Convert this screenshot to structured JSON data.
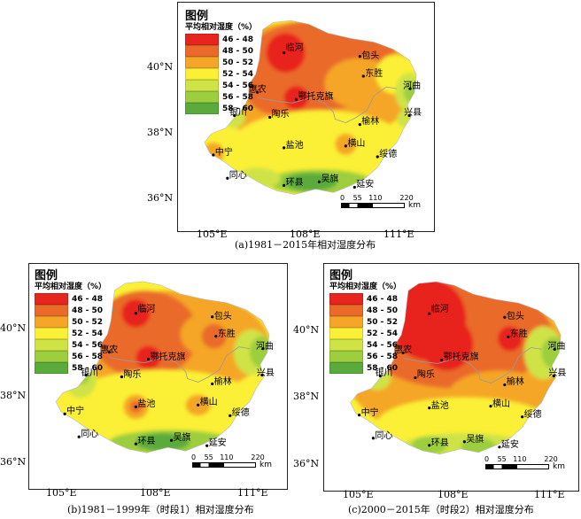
{
  "colors": {
    "46-48": "#e8241f",
    "48-50": "#ea6a2a",
    "50-52": "#f5a628",
    "52-54": "#fbf036",
    "54-56": "#cfe347",
    "56-58": "#9cce3e",
    "58-60": "#5aab3b",
    "boundary": "#9a9a9a"
  },
  "legend": {
    "title": "图例",
    "subtitle": "平均相对湿度（%）",
    "items": [
      {
        "label": "46 - 48",
        "color": "#e8241f"
      },
      {
        "label": "48 - 50",
        "color": "#ea6a2a"
      },
      {
        "label": "50 - 52",
        "color": "#f5a628"
      },
      {
        "label": "52 - 54",
        "color": "#fbf036"
      },
      {
        "label": "54 - 56",
        "color": "#cfe347"
      },
      {
        "label": "56 - 58",
        "color": "#9cce3e"
      },
      {
        "label": "58 - 60",
        "color": "#5aab3b"
      }
    ]
  },
  "axes": {
    "lon_labels": [
      "105°E",
      "108°E",
      "111°E"
    ],
    "lat_labels": [
      "40°N",
      "38°N",
      "36°N"
    ]
  },
  "scale_bar": {
    "ticks": [
      "0",
      "55",
      "110",
      "220"
    ],
    "unit": "km"
  },
  "stations": [
    "临河",
    "包头",
    "惠农",
    "鄂托克旗",
    "东胜",
    "河曲",
    "银川",
    "陶乐",
    "榆林",
    "兴县",
    "中宁",
    "盐池",
    "横山",
    "绥德",
    "同心",
    "环县",
    "吴旗",
    "延安"
  ],
  "panels": [
    {
      "id": "a",
      "caption": "(a)1981－2015年相对湿度分布"
    },
    {
      "id": "b",
      "caption": "(b)1981－1999年（时段1）相对湿度分布"
    },
    {
      "id": "c",
      "caption": "(c)2000－2015年（时段2）相对湿度分布"
    }
  ]
}
